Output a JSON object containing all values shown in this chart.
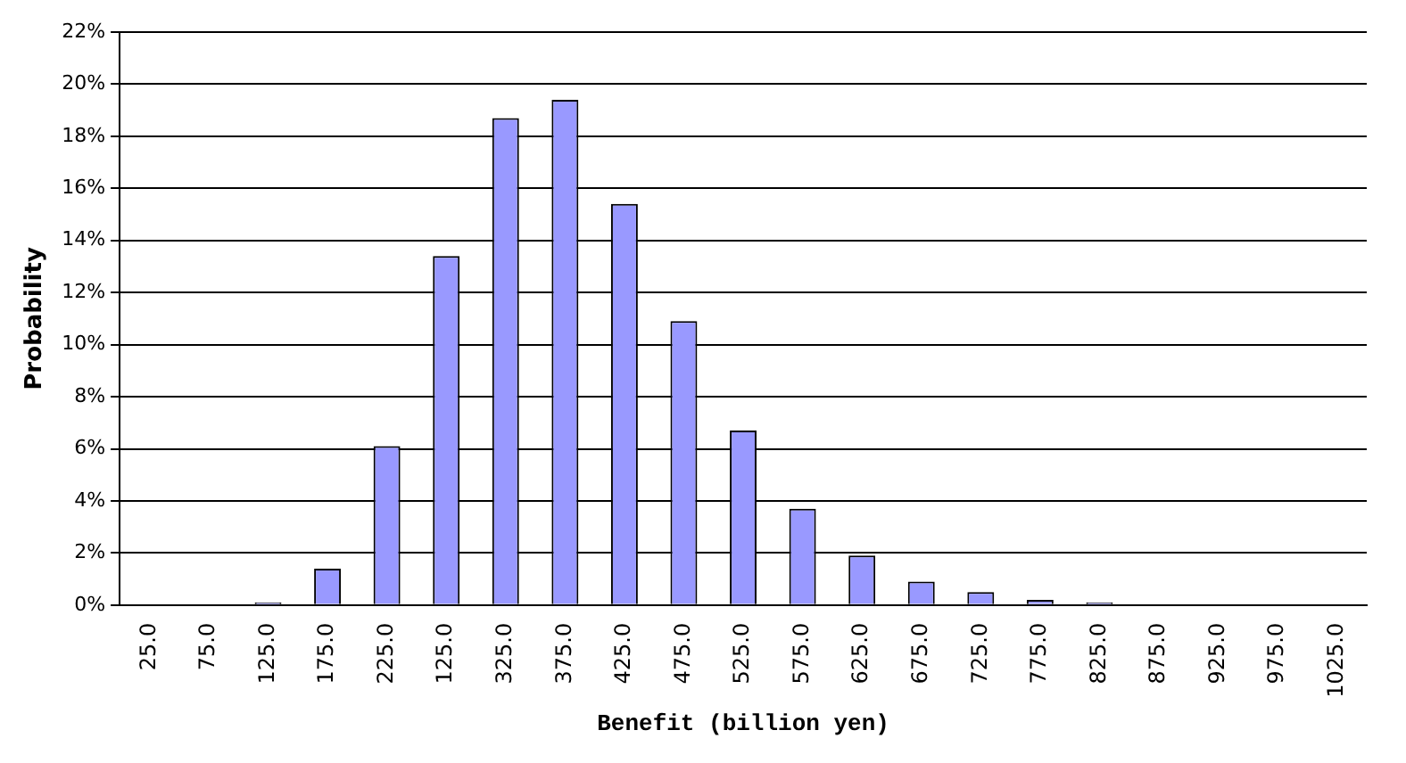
{
  "chart_data": {
    "type": "bar",
    "xlabel": "Benefit (billion yen)",
    "ylabel": "Probability",
    "categories": [
      "25.0",
      "75.0",
      "125.0",
      "175.0",
      "225.0",
      "125.0",
      "325.0",
      "375.0",
      "425.0",
      "475.0",
      "525.0",
      "575.0",
      "625.0",
      "675.0",
      "725.0",
      "775.0",
      "825.0",
      "875.0",
      "925.0",
      "975.0",
      "1025.0"
    ],
    "values": [
      0,
      0,
      0.1,
      1.4,
      6.1,
      13.4,
      18.7,
      19.4,
      15.4,
      10.9,
      6.7,
      3.7,
      1.9,
      0.9,
      0.5,
      0.2,
      0.1,
      0,
      0,
      0,
      0
    ],
    "color": "#9999ff",
    "ylim": [
      0,
      22
    ],
    "yticks": [
      {
        "value": 0,
        "label": "0%"
      },
      {
        "value": 2,
        "label": "2%"
      },
      {
        "value": 4,
        "label": "4%"
      },
      {
        "value": 6,
        "label": "6%"
      },
      {
        "value": 8,
        "label": "8%"
      },
      {
        "value": 10,
        "label": "10%"
      },
      {
        "value": 12,
        "label": "12%"
      },
      {
        "value": 14,
        "label": "14%"
      },
      {
        "value": 16,
        "label": "16%"
      },
      {
        "value": 18,
        "label": "18%"
      },
      {
        "value": 20,
        "label": "20%"
      },
      {
        "value": 22,
        "label": "22%"
      }
    ],
    "grid": "y",
    "legend": false
  }
}
